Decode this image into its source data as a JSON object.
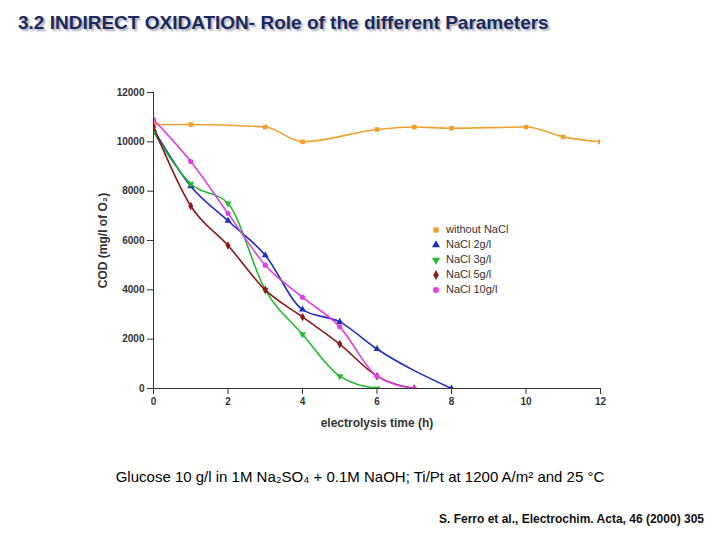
{
  "chart_data": {
    "type": "line",
    "title": "3.2 INDIRECT OXIDATION- Role of the different Parameters",
    "x_label": "electrolysis time (h)",
    "y_label": "COD (mg/l of O₂)",
    "caption": "Glucose 10 g/l in 1M Na₂SO₄ + 0.1M NaOH; Ti/Pt at 1200 A/m² and 25 °C",
    "source": "S. Ferro et al., Electrochim. Acta, 46 (2000) 305",
    "xlim": [
      0,
      12
    ],
    "xticks": [
      0,
      2,
      4,
      6,
      8,
      10,
      12
    ],
    "ylim": [
      0,
      12000
    ],
    "yticks": [
      0,
      2000,
      4000,
      6000,
      8000,
      10000,
      12000
    ],
    "grid": false,
    "legend": "right",
    "series": [
      {
        "name": "without NaCl",
        "color": "#f0a030",
        "marker": "square",
        "x": [
          0,
          1,
          3,
          4,
          6,
          7,
          8,
          10,
          11,
          12
        ],
        "values": [
          10700,
          10700,
          10600,
          10000,
          10500,
          10600,
          10550,
          10600,
          10200,
          10000
        ]
      },
      {
        "name": "NaCl 2g/l",
        "color": "#1f2fbf",
        "marker": "triangle",
        "x": [
          0,
          1,
          2,
          3,
          4,
          5,
          6,
          8
        ],
        "values": [
          10500,
          8200,
          6800,
          5400,
          3200,
          2700,
          1600,
          0
        ]
      },
      {
        "name": "NaCl 3g/l",
        "color": "#22bb33",
        "marker": "triangle-down",
        "x": [
          0,
          1,
          2,
          3,
          4,
          5,
          6
        ],
        "values": [
          10400,
          8300,
          7500,
          4000,
          2200,
          500,
          0
        ]
      },
      {
        "name": "NaCl 5g/l",
        "color": "#8b1a1a",
        "marker": "diamond",
        "x": [
          0,
          1,
          2,
          3,
          4,
          5,
          6,
          7
        ],
        "values": [
          10600,
          7400,
          5800,
          4000,
          2900,
          1800,
          500,
          0
        ]
      },
      {
        "name": "NaCl 10g/l",
        "color": "#e040e0",
        "marker": "circle",
        "x": [
          0,
          1,
          2,
          3,
          4,
          5,
          6,
          7
        ],
        "values": [
          10900,
          9200,
          7100,
          5000,
          3700,
          2500,
          500,
          0
        ]
      }
    ]
  }
}
